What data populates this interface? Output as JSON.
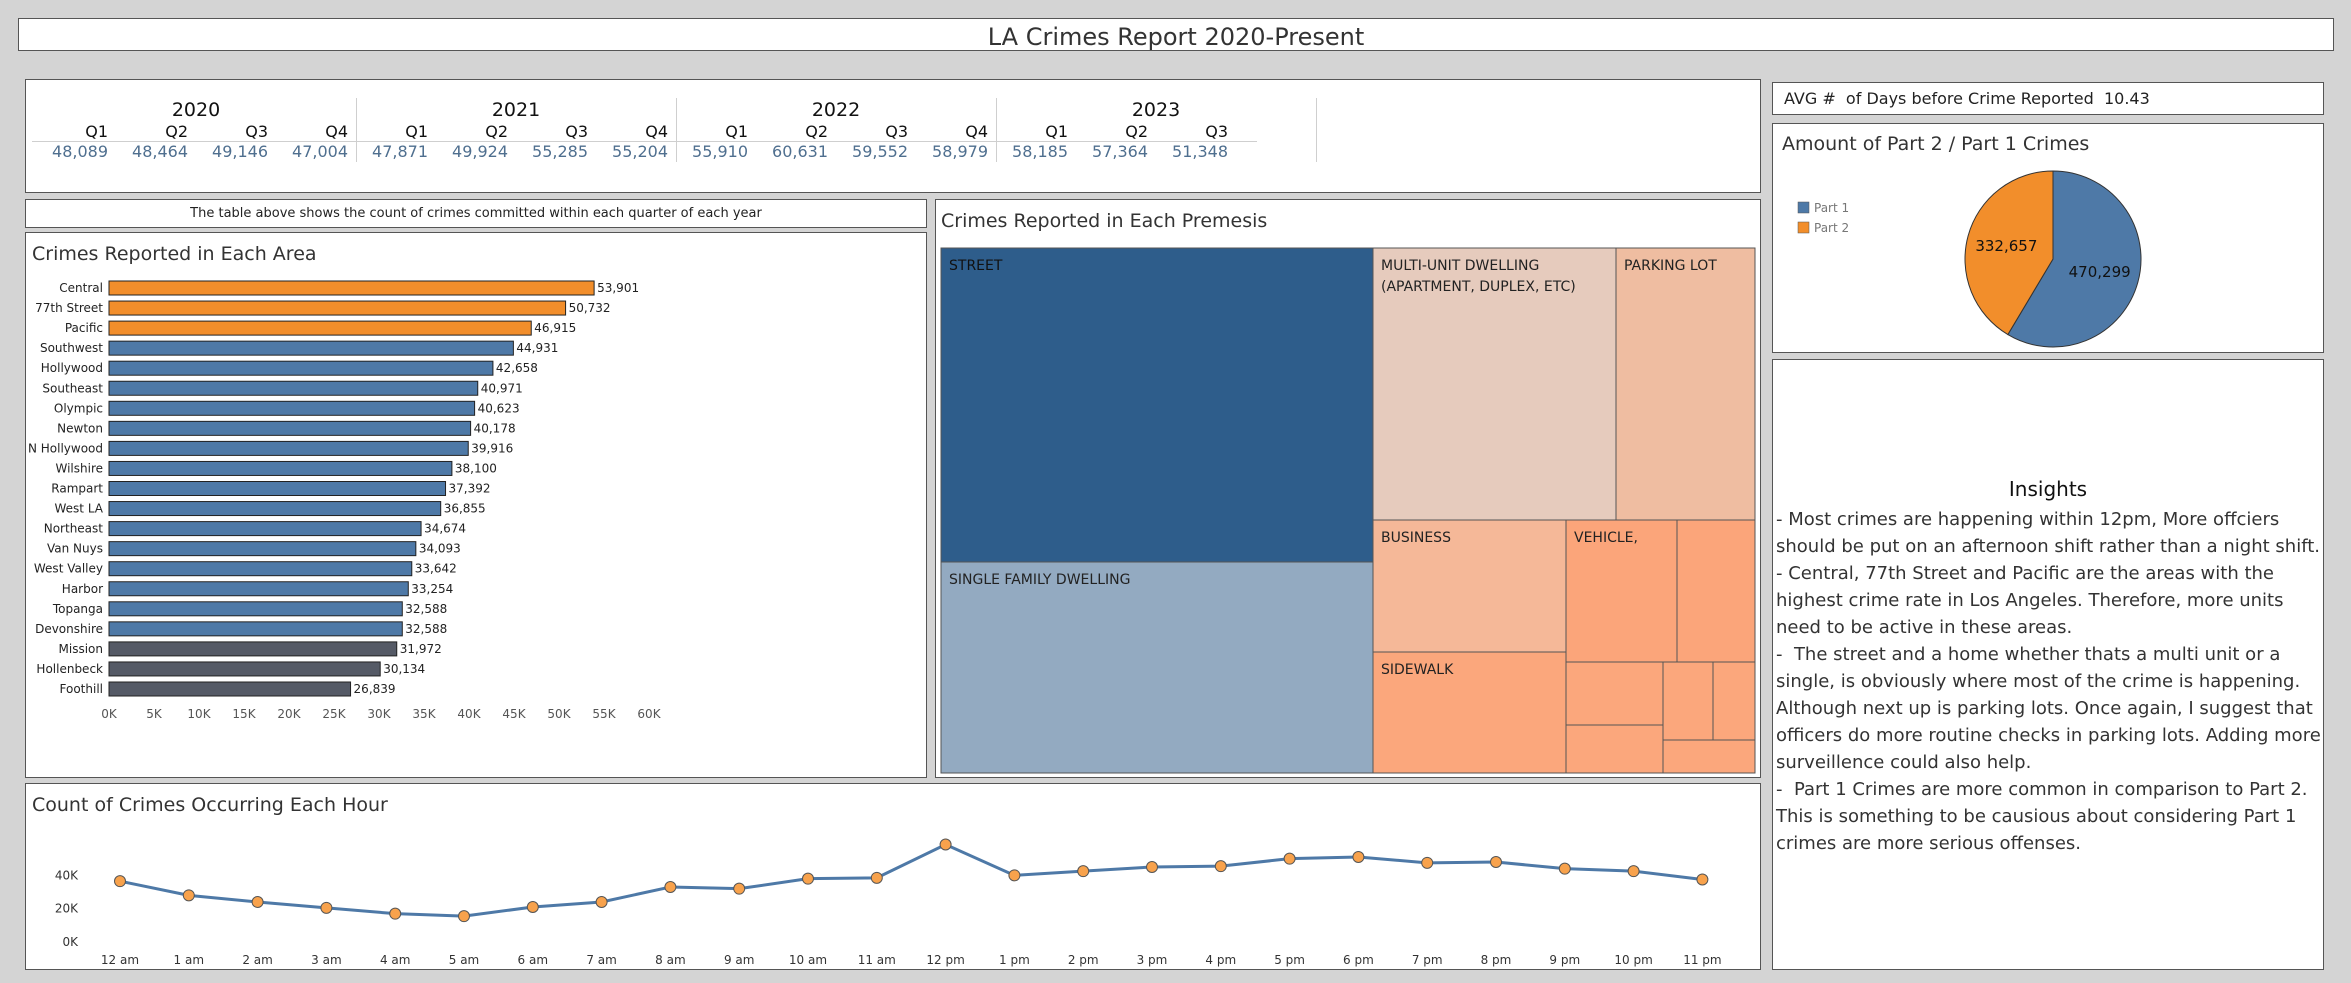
{
  "report_title": "LA Crimes Report 2020-Present",
  "quarter_table": {
    "years": [
      {
        "year": "2020",
        "quarters": [
          "Q1",
          "Q2",
          "Q3",
          "Q4"
        ],
        "values": [
          "48,089",
          "48,464",
          "49,146",
          "47,004"
        ]
      },
      {
        "year": "2021",
        "quarters": [
          "Q1",
          "Q2",
          "Q3",
          "Q4"
        ],
        "values": [
          "47,871",
          "49,924",
          "55,285",
          "55,204"
        ]
      },
      {
        "year": "2022",
        "quarters": [
          "Q1",
          "Q2",
          "Q3",
          "Q4"
        ],
        "values": [
          "55,910",
          "60,631",
          "59,552",
          "58,979"
        ]
      },
      {
        "year": "2023",
        "quarters": [
          "Q1",
          "Q2",
          "Q3"
        ],
        "values": [
          "58,185",
          "57,364",
          "51,348"
        ]
      }
    ],
    "caption": "The table above shows the count of crimes committed within each quarter of each year"
  },
  "avg_days": {
    "label": "AVG #  of Days before Crime Reported",
    "value": "10.43"
  },
  "colors": {
    "orange": "#f28e2b",
    "blue": "#4e79a7",
    "gray": "#555a66"
  },
  "chart_data": [
    {
      "type": "bar",
      "orientation": "horizontal",
      "title": "Crimes Reported in Each Area",
      "categories": [
        "Central",
        "77th Street",
        "Pacific",
        "Southwest",
        "Hollywood",
        "Southeast",
        "Olympic",
        "Newton",
        "N Hollywood",
        "Wilshire",
        "Rampart",
        "West LA",
        "Northeast",
        "Van Nuys",
        "West Valley",
        "Harbor",
        "Topanga",
        "Devonshire",
        "Mission",
        "Hollenbeck",
        "Foothill"
      ],
      "values": [
        53901,
        50732,
        46915,
        44931,
        42658,
        40971,
        40623,
        40178,
        39916,
        38100,
        37392,
        36855,
        34674,
        34093,
        33642,
        33254,
        32588,
        32588,
        31972,
        30134,
        26839
      ],
      "data_labels": [
        "53,901",
        "50,732",
        "46,915",
        "44,931",
        "42,658",
        "40,971",
        "40,623",
        "40,178",
        "39,916",
        "38,100",
        "37,392",
        "36,855",
        "34,674",
        "34,093",
        "33,642",
        "33,254",
        "32,588",
        "32,588",
        "31,972",
        "30,134",
        "26,839"
      ],
      "color_groups": [
        "orange",
        "orange",
        "orange",
        "blue",
        "blue",
        "blue",
        "blue",
        "blue",
        "blue",
        "blue",
        "blue",
        "blue",
        "blue",
        "blue",
        "blue",
        "blue",
        "blue",
        "blue",
        "gray",
        "gray",
        "gray"
      ],
      "xlim": [
        0,
        60000
      ],
      "xticks": [
        "0K",
        "5K",
        "10K",
        "15K",
        "20K",
        "25K",
        "30K",
        "35K",
        "40K",
        "45K",
        "50K",
        "55K",
        "60K"
      ]
    },
    {
      "type": "treemap",
      "title": "Crimes Reported in Each Premesis",
      "labeled_cells": [
        "STREET",
        "SINGLE FAMILY DWELLING",
        "MULTI-UNIT DWELLING (APARTMENT, DUPLEX, ETC)",
        "PARKING LOT",
        "BUSINESS",
        "VEHICLE,",
        "SIDEWALK"
      ]
    },
    {
      "type": "pie",
      "title": "Amount of Part 2 / Part 1 Crimes",
      "labels": [
        "Part 1",
        "Part 2"
      ],
      "values": [
        470299,
        332657
      ],
      "data_labels": [
        "470,299",
        "332,657"
      ],
      "colors": [
        "#4e79a7",
        "#f28e2b"
      ],
      "legend_position": "left"
    },
    {
      "type": "line",
      "title": "Count of Crimes Occurring Each Hour",
      "x": [
        "12 am",
        "1 am",
        "2 am",
        "3 am",
        "4 am",
        "5 am",
        "6 am",
        "7 am",
        "8 am",
        "9 am",
        "10 am",
        "11 am",
        "12 pm",
        "1 pm",
        "2 pm",
        "3 pm",
        "4 pm",
        "5 pm",
        "6 pm",
        "7 pm",
        "8 pm",
        "9 pm",
        "10 pm",
        "11 pm"
      ],
      "y": [
        33500,
        25000,
        21000,
        17500,
        14000,
        12500,
        18000,
        21000,
        30000,
        29000,
        35000,
        35500,
        55500,
        37000,
        39500,
        42000,
        42500,
        47000,
        48000,
        44500,
        45000,
        41000,
        39500,
        34500
      ],
      "yticks": [
        "0K",
        "20K",
        "40K"
      ],
      "ylim": [
        0,
        60000
      ]
    }
  ],
  "insights": {
    "title": "Insights",
    "paragraphs": [
      "- Most crimes are happening within 12pm, More offciers should be put on an afternoon shift rather than a night shift.",
      "- Central, 77th Street and Pacific are the areas with the highest crime rate in Los Angeles. Therefore, more units need to be active in these areas.",
      "-  The street and a home whether thats a multi unit or a single, is obviously where most of the crime is happening. Although next up is parking lots. Once again, I suggest that officers do more routine checks in parking lots. Adding more surveillence could also help.",
      "-  Part 1 Crimes are more common in comparison to Part 2. This is something to be causious about considering Part 1 crimes are more serious offenses."
    ]
  }
}
